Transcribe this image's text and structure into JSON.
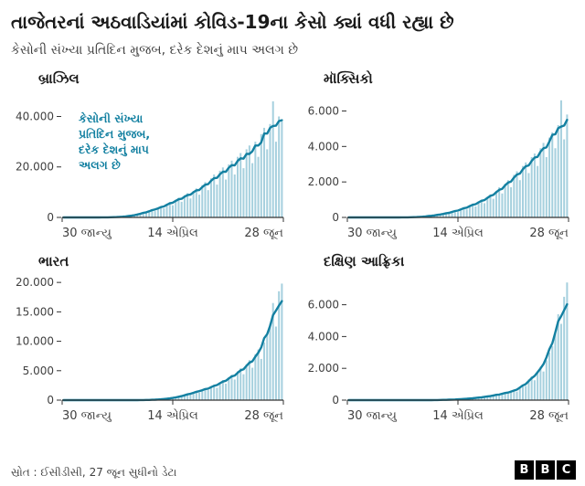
{
  "header": {
    "title": "તાજેતરનાં અઠવાડિયાંમાં કોવિડ-19ના કેસો ક્યાં વધી રહ્યા છે",
    "subtitle": "કેસોની સંખ્યા પ્રતિદિન મુજબ, દરેક દેશનું માપ અલગ છે"
  },
  "annotation": {
    "text": "કેસોની સંખ્યા\nપ્રતિદિન મુજબ,\nદરેક દેશનું માપ\nઅલગ છે",
    "color": "#1380A1"
  },
  "footer": {
    "source": "સ્રોત : ઈસીડીસી, 27 જૂન સુધીનો ડેટા",
    "logo": [
      "B",
      "B",
      "C"
    ]
  },
  "colors": {
    "bar": "#a6d0de",
    "line": "#1380A1",
    "axis": "#333333",
    "text": "#404040"
  },
  "chart_data": [
    {
      "type": "bar",
      "title": "બ્રાઝિલ",
      "note": "daily new cases with rolling-average trend line",
      "x_tick_labels": [
        "30 જાન્યુ",
        "14 એપ્રિલ",
        "28 જૂન"
      ],
      "y_ticks": [
        0,
        20000,
        40000
      ],
      "y_tick_labels": [
        "0",
        "20.000",
        "40.000"
      ],
      "ylim": [
        0,
        48500
      ],
      "values": [
        0,
        0,
        0,
        0,
        0,
        0,
        0,
        0,
        0,
        0,
        5,
        8,
        12,
        18,
        25,
        40,
        60,
        90,
        130,
        180,
        260,
        350,
        480,
        620,
        800,
        1000,
        1300,
        1700,
        2100,
        2600,
        3100,
        2500,
        3800,
        4400,
        3600,
        5200,
        6100,
        4800,
        7000,
        7800,
        6200,
        8800,
        9600,
        7500,
        10500,
        11500,
        9000,
        12800,
        14000,
        10800,
        15500,
        17000,
        13000,
        18500,
        19800,
        15000,
        21000,
        22500,
        17000,
        24000,
        25500,
        19500,
        27000,
        28500,
        21500,
        30000,
        24000,
        33000,
        35500,
        27000,
        37000,
        46000,
        30000,
        40000,
        38000
      ]
    },
    {
      "type": "bar",
      "title": "મૉક્સિકો",
      "note": "daily new cases with rolling-average trend line",
      "x_tick_labels": [
        "30 જાન્યુ",
        "14 એપ્રિલ",
        "28 જૂન"
      ],
      "y_ticks": [
        0,
        2000,
        4000,
        6000
      ],
      "y_tick_labels": [
        "0",
        "2.000",
        "4.000",
        "6.000"
      ],
      "ylim": [
        0,
        6900
      ],
      "values": [
        0,
        0,
        0,
        0,
        0,
        0,
        0,
        0,
        0,
        0,
        0,
        0,
        0,
        0,
        0,
        0,
        0,
        1,
        2,
        3,
        5,
        8,
        12,
        18,
        25,
        35,
        50,
        70,
        95,
        120,
        150,
        120,
        200,
        260,
        210,
        320,
        390,
        300,
        480,
        560,
        450,
        680,
        780,
        620,
        900,
        1000,
        800,
        1150,
        1300,
        1050,
        1500,
        1700,
        1350,
        1900,
        2100,
        1700,
        2400,
        2600,
        2100,
        2900,
        3100,
        2500,
        3400,
        3600,
        2900,
        3900,
        4200,
        3400,
        4500,
        4800,
        3900,
        5200,
        6600,
        4400,
        5800
      ]
    },
    {
      "type": "bar",
      "title": "ભારત",
      "note": "daily new cases with rolling-average trend line",
      "x_tick_labels": [
        "30 જાન્યુ",
        "14 એપ્રિલ",
        "28 જૂન"
      ],
      "y_ticks": [
        0,
        5000,
        10000,
        15000,
        20000
      ],
      "y_tick_labels": [
        "0",
        "5.000",
        "10.000",
        "15.000",
        "20.000"
      ],
      "ylim": [
        0,
        20800
      ],
      "values": [
        0,
        0,
        0,
        0,
        0,
        0,
        0,
        0,
        0,
        0,
        0,
        0,
        0,
        0,
        0,
        0,
        0,
        0,
        0,
        0,
        0,
        1,
        1,
        2,
        3,
        5,
        8,
        12,
        20,
        30,
        45,
        65,
        90,
        120,
        160,
        210,
        270,
        340,
        430,
        540,
        660,
        800,
        950,
        1100,
        1300,
        1500,
        1250,
        1750,
        2000,
        1700,
        2300,
        2600,
        2100,
        3000,
        3400,
        2800,
        3900,
        4300,
        3500,
        4900,
        5400,
        4400,
        6100,
        6800,
        5500,
        7800,
        8600,
        7000,
        9800,
        11000,
        13000,
        16500,
        12500,
        18500,
        19800
      ]
    },
    {
      "type": "bar",
      "title": "દક્ષિણ આફ્રિકા",
      "note": "daily new cases with rolling-average trend line",
      "x_tick_labels": [
        "30 જાન્યુ",
        "14 એપ્રિલ",
        "28 જૂન"
      ],
      "y_ticks": [
        0,
        2000,
        4000,
        6000
      ],
      "y_tick_labels": [
        "0",
        "2.000",
        "4.000",
        "6.000"
      ],
      "ylim": [
        0,
        7700
      ],
      "values": [
        0,
        0,
        0,
        0,
        0,
        0,
        0,
        0,
        0,
        0,
        0,
        0,
        0,
        0,
        0,
        0,
        0,
        0,
        0,
        0,
        0,
        0,
        0,
        0,
        0,
        0,
        1,
        1,
        2,
        3,
        5,
        8,
        12,
        17,
        24,
        32,
        42,
        55,
        70,
        60,
        90,
        110,
        95,
        140,
        170,
        150,
        210,
        250,
        220,
        300,
        350,
        300,
        420,
        480,
        400,
        560,
        640,
        540,
        750,
        850,
        900,
        1300,
        1500,
        1250,
        1800,
        2100,
        1800,
        2500,
        3000,
        3400,
        4200,
        5400,
        4800,
        6500,
        7400
      ]
    }
  ]
}
